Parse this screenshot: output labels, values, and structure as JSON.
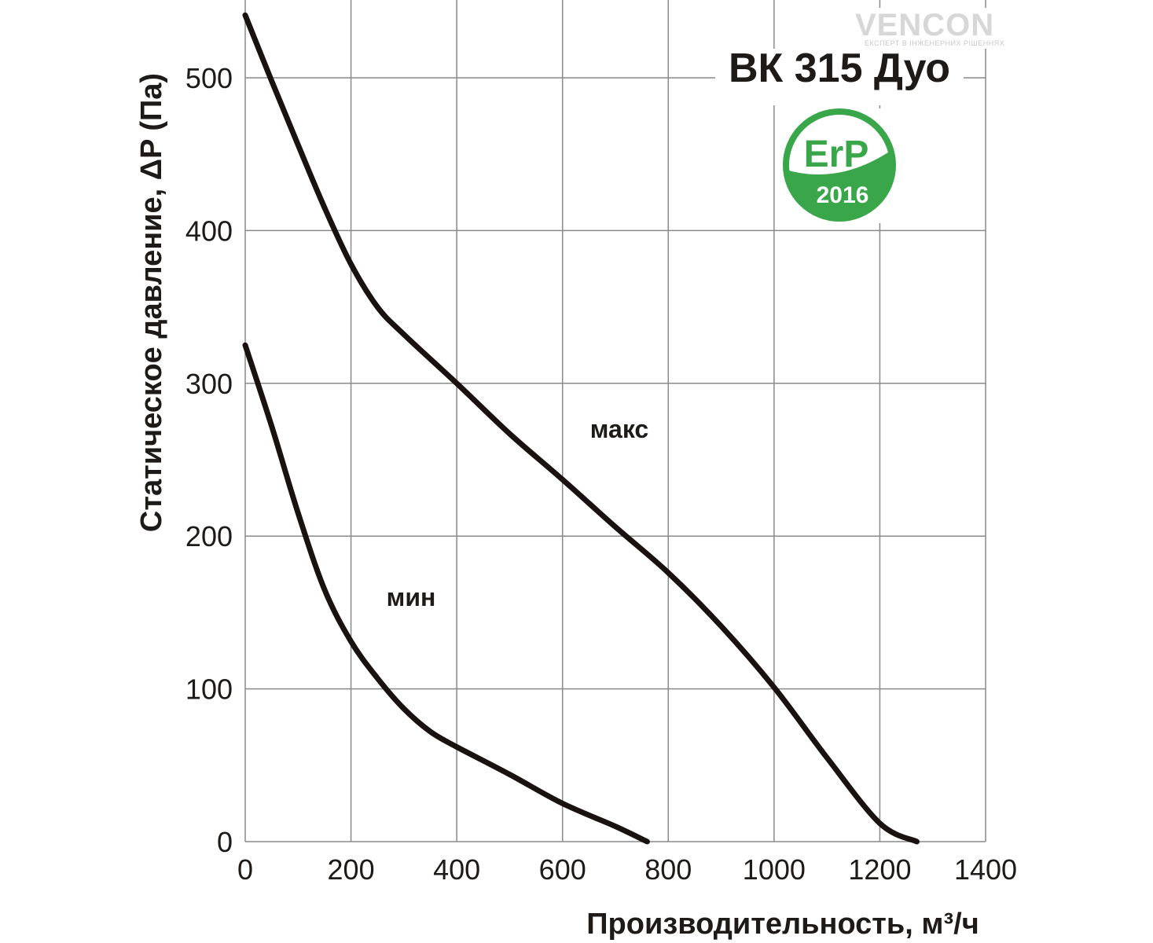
{
  "chart_data": {
    "type": "line",
    "title": "ВК 315 Дуо",
    "xlabel": "Производительность, м³/ч",
    "ylabel": "Статическое давление, ΔP (Па)",
    "xlim": [
      0,
      1400
    ],
    "ylim": [
      0,
      540
    ],
    "xticks": [
      "0",
      "200",
      "400",
      "600",
      "800",
      "1000",
      "1200",
      "1400"
    ],
    "yticks": [
      "0",
      "100",
      "200",
      "300",
      "400",
      "500"
    ],
    "grid": true,
    "series": [
      {
        "name": "макс",
        "x": [
          0,
          50,
          100,
          150,
          200,
          250,
          300,
          400,
          500,
          600,
          700,
          800,
          900,
          1000,
          1100,
          1200,
          1270
        ],
        "y": [
          541,
          498,
          456,
          415,
          378,
          350,
          332,
          300,
          267,
          237,
          206,
          176,
          141,
          101,
          55,
          12,
          0
        ]
      },
      {
        "name": "мин",
        "x": [
          0,
          50,
          100,
          150,
          200,
          250,
          300,
          350,
          400,
          500,
          600,
          700,
          760
        ],
        "y": [
          325,
          272,
          215,
          165,
          131,
          107,
          87,
          72,
          62,
          44,
          25,
          10,
          0
        ]
      }
    ]
  },
  "branding": {
    "logo_text": "VENCON",
    "logo_subtext": "ЕКСПЕРТ В ІНЖЕНЕРНИХ РІШЕННЯХ",
    "erp_text": "ErP",
    "erp_year": "2016",
    "erp_color": "#3aa64a"
  }
}
